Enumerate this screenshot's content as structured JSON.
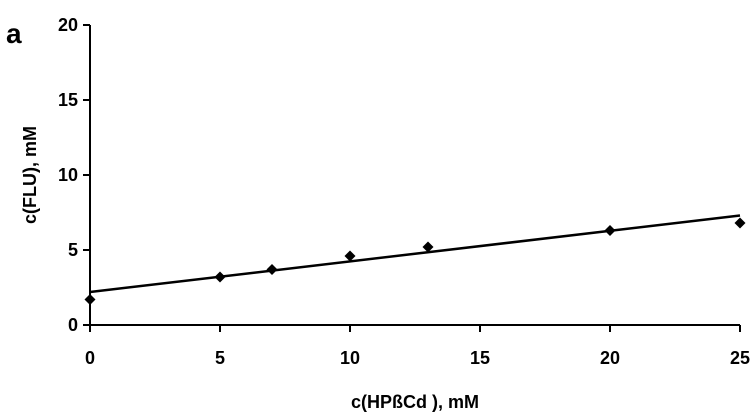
{
  "chart_data": {
    "type": "scatter",
    "panel_label": "a",
    "title": "",
    "xlabel": "c(HPßCd ), mM",
    "ylabel": "c(FLU), mM",
    "xlim": [
      0,
      25
    ],
    "ylim": [
      0,
      20
    ],
    "xticks": [
      "0",
      "5",
      "10",
      "15",
      "20",
      "25"
    ],
    "yticks": [
      "0",
      "5",
      "10",
      "15",
      "20"
    ],
    "grid": false,
    "legend": "none",
    "series": [
      {
        "marker": "diamond",
        "color": "#000000",
        "points": [
          {
            "x": 0,
            "y": 1.7
          },
          {
            "x": 5,
            "y": 3.2
          },
          {
            "x": 7,
            "y": 3.7
          },
          {
            "x": 10,
            "y": 4.6
          },
          {
            "x": 13,
            "y": 5.2
          },
          {
            "x": 20,
            "y": 6.3
          },
          {
            "x": 25,
            "y": 6.8
          }
        ]
      }
    ],
    "trendline": {
      "type": "linear",
      "x": [
        0,
        25
      ],
      "y": [
        2.2,
        7.3
      ]
    }
  }
}
